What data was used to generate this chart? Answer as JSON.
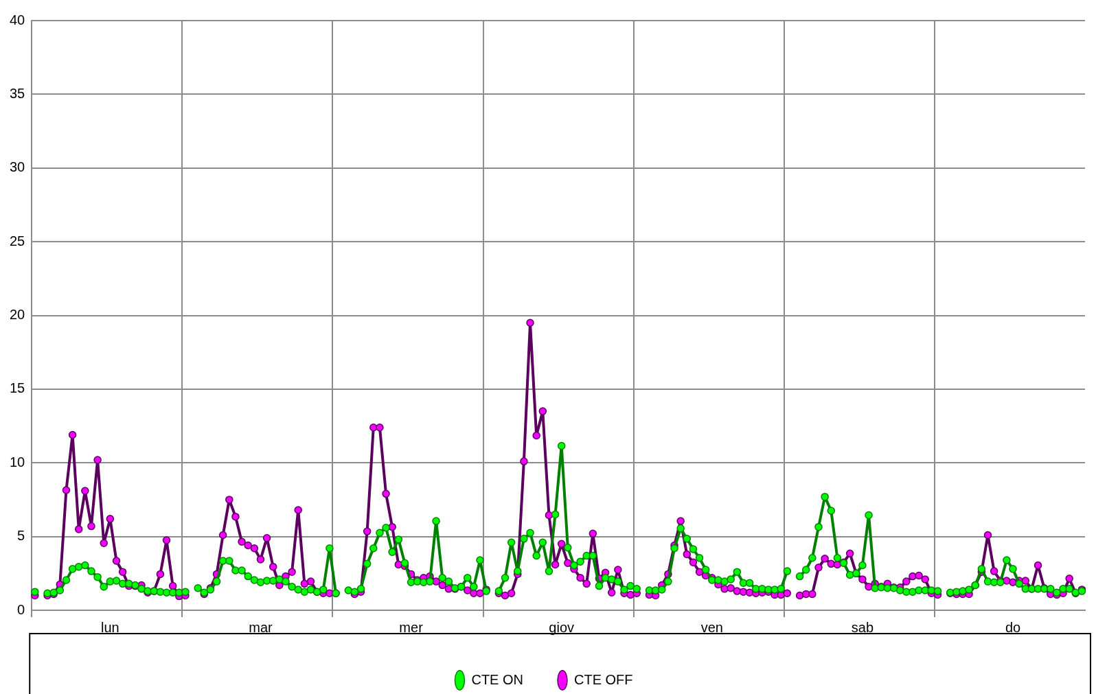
{
  "chart_data": {
    "type": "line",
    "categories": [
      null,
      null,
      null,
      null,
      null,
      null,
      null,
      null,
      null,
      null,
      null,
      null,
      "lun",
      null,
      null,
      null,
      null,
      null,
      null,
      null,
      null,
      null,
      null,
      null,
      null,
      null,
      null,
      null,
      null,
      null,
      null,
      null,
      null,
      null,
      null,
      null,
      "mar",
      null,
      null,
      null,
      null,
      null,
      null,
      null,
      null,
      null,
      null,
      null,
      null,
      null,
      null,
      null,
      null,
      null,
      null,
      null,
      null,
      null,
      null,
      null,
      "mer",
      null,
      null,
      null,
      null,
      null,
      null,
      null,
      null,
      null,
      null,
      null,
      null,
      null,
      null,
      null,
      null,
      null,
      null,
      null,
      null,
      null,
      null,
      null,
      "giov",
      null,
      null,
      null,
      null,
      null,
      null,
      null,
      null,
      null,
      null,
      null,
      null,
      null,
      null,
      null,
      null,
      null,
      null,
      null,
      null,
      null,
      null,
      null,
      "ven",
      null,
      null,
      null,
      null,
      null,
      null,
      null,
      null,
      null,
      null,
      null,
      null,
      null,
      null,
      null,
      null,
      null,
      null,
      null,
      null,
      null,
      null,
      null,
      "sab",
      null,
      null,
      null,
      null,
      null,
      null,
      null,
      null,
      null,
      null,
      null,
      null,
      null,
      null,
      null,
      null,
      null,
      null,
      null,
      null,
      null,
      null,
      null,
      "do",
      null,
      null,
      null,
      null,
      null,
      null,
      null,
      null,
      null,
      null,
      null
    ],
    "series": [
      {
        "name": "CTE ON",
        "color": "#008000",
        "values": [
          1.25,
          null,
          1.15,
          1.2,
          1.35,
          2.05,
          2.8,
          2.95,
          3.05,
          2.65,
          2.25,
          1.6,
          1.95,
          2.0,
          1.8,
          1.8,
          1.7,
          1.45,
          1.3,
          1.3,
          1.25,
          1.2,
          1.2,
          1.2,
          1.25,
          null,
          1.5,
          1.2,
          1.4,
          1.95,
          3.35,
          3.35,
          2.7,
          2.7,
          2.3,
          2.05,
          1.9,
          2.0,
          2.0,
          2.1,
          1.95,
          1.6,
          1.4,
          1.25,
          1.4,
          1.25,
          1.4,
          4.2,
          1.15,
          null,
          1.35,
          1.25,
          1.45,
          3.15,
          4.2,
          5.25,
          5.6,
          3.95,
          4.8,
          3.2,
          1.9,
          1.95,
          1.9,
          1.95,
          6.05,
          2.2,
          1.95,
          1.5,
          1.6,
          2.2,
          1.6,
          3.4,
          1.3,
          null,
          1.3,
          2.2,
          4.6,
          2.65,
          4.85,
          5.25,
          3.7,
          4.6,
          2.65,
          6.5,
          11.15,
          4.25,
          3.05,
          3.3,
          3.7,
          3.7,
          1.65,
          2.2,
          2.1,
          1.95,
          1.4,
          1.65,
          1.45,
          null,
          1.35,
          1.35,
          1.4,
          1.95,
          4.2,
          5.55,
          4.85,
          4.15,
          3.55,
          2.75,
          2.05,
          2.05,
          1.95,
          2.1,
          2.6,
          1.85,
          1.85,
          1.45,
          1.45,
          1.4,
          1.4,
          1.45,
          2.65,
          null,
          2.3,
          2.75,
          3.55,
          5.65,
          7.7,
          6.75,
          3.55,
          3.2,
          2.4,
          2.5,
          3.05,
          6.45,
          1.5,
          1.55,
          1.5,
          1.5,
          1.35,
          1.25,
          1.25,
          1.35,
          1.35,
          1.35,
          1.3,
          null,
          1.2,
          1.25,
          1.3,
          1.4,
          1.7,
          2.8,
          1.95,
          1.9,
          1.9,
          3.4,
          2.8,
          1.8,
          1.45,
          1.45,
          1.45,
          1.45,
          1.45,
          1.2,
          1.45,
          1.45,
          1.2,
          1.3
        ]
      },
      {
        "name": "CTE OFF",
        "color": "#5c0060",
        "values": [
          1.0,
          null,
          1.0,
          1.1,
          1.75,
          8.15,
          11.9,
          5.5,
          8.1,
          5.7,
          10.2,
          4.55,
          6.2,
          3.35,
          2.6,
          1.65,
          1.65,
          1.7,
          1.2,
          1.3,
          2.45,
          4.75,
          1.65,
          0.95,
          1.0,
          null,
          null,
          1.1,
          1.5,
          2.45,
          5.1,
          7.5,
          6.35,
          4.65,
          4.4,
          4.2,
          3.45,
          4.9,
          2.95,
          1.7,
          2.3,
          2.6,
          6.8,
          1.8,
          1.95,
          1.25,
          1.15,
          1.15,
          1.15,
          null,
          null,
          1.1,
          1.25,
          5.35,
          12.4,
          12.4,
          7.9,
          5.65,
          3.1,
          3.0,
          2.45,
          2.05,
          2.2,
          2.3,
          1.95,
          1.7,
          1.45,
          1.45,
          1.6,
          1.35,
          1.15,
          1.15,
          1.4,
          null,
          1.15,
          1.0,
          1.15,
          2.45,
          10.1,
          19.5,
          11.85,
          13.5,
          6.45,
          3.1,
          4.5,
          3.2,
          2.8,
          2.2,
          1.8,
          5.2,
          2.15,
          2.55,
          1.2,
          2.75,
          1.15,
          1.05,
          1.15,
          null,
          1.05,
          1.0,
          1.7,
          2.45,
          4.4,
          6.05,
          3.8,
          3.25,
          2.6,
          2.35,
          2.2,
          1.75,
          1.45,
          1.5,
          1.3,
          1.25,
          1.2,
          1.15,
          1.2,
          1.25,
          1.05,
          1.05,
          1.15,
          null,
          1.0,
          1.1,
          1.1,
          2.9,
          3.5,
          3.15,
          3.1,
          3.25,
          3.85,
          2.5,
          2.1,
          1.6,
          1.8,
          1.6,
          1.8,
          1.55,
          1.55,
          1.95,
          2.3,
          2.35,
          2.1,
          1.15,
          1.05,
          null,
          1.15,
          1.1,
          1.1,
          1.1,
          1.7,
          2.6,
          5.1,
          2.65,
          2.0,
          2.0,
          1.9,
          2.0,
          2.0,
          1.45,
          3.05,
          1.5,
          1.1,
          1.05,
          1.15,
          2.15,
          1.15,
          1.4
        ]
      }
    ],
    "ylim": [
      0,
      40
    ],
    "yticks": [
      0,
      5,
      10,
      15,
      20,
      25,
      30,
      35,
      40
    ],
    "grid": true,
    "legend": "bottom",
    "marker": "circle",
    "line_style": "solid"
  }
}
